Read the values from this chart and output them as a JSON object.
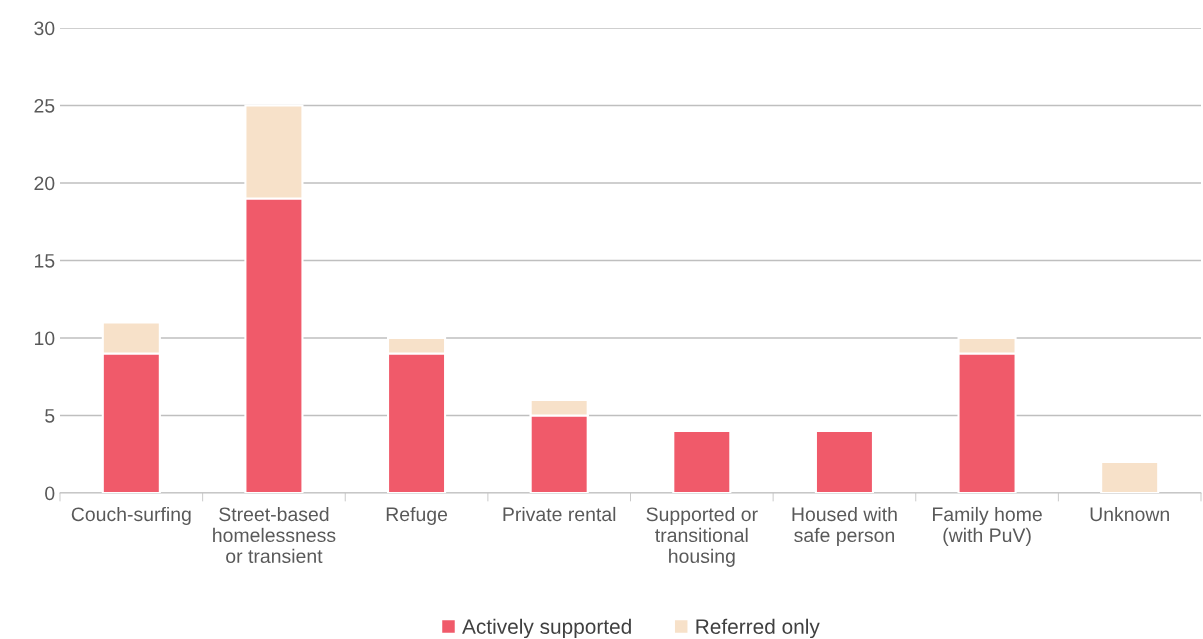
{
  "chart_data": {
    "type": "bar",
    "stacked": true,
    "categories": [
      "Couch-surfing",
      "Street-based\nhomelessness\nor transient",
      "Refuge",
      "Private rental",
      "Supported or\ntransitional\nhousing",
      "Housed with\nsafe person",
      "Family home\n(with PuV)",
      "Unknown"
    ],
    "series": [
      {
        "name": "Actively supported",
        "color": "#f05a6a",
        "values": [
          9,
          19,
          9,
          5,
          4,
          4,
          9,
          0
        ]
      },
      {
        "name": "Referred only",
        "color": "#f7e1c9",
        "values": [
          2,
          6,
          1,
          1,
          0,
          0,
          1,
          2
        ]
      }
    ],
    "ylim": [
      0,
      30
    ],
    "yticks": [
      0,
      5,
      10,
      15,
      20,
      25,
      30
    ],
    "grid": "y",
    "legend": "bottom"
  }
}
